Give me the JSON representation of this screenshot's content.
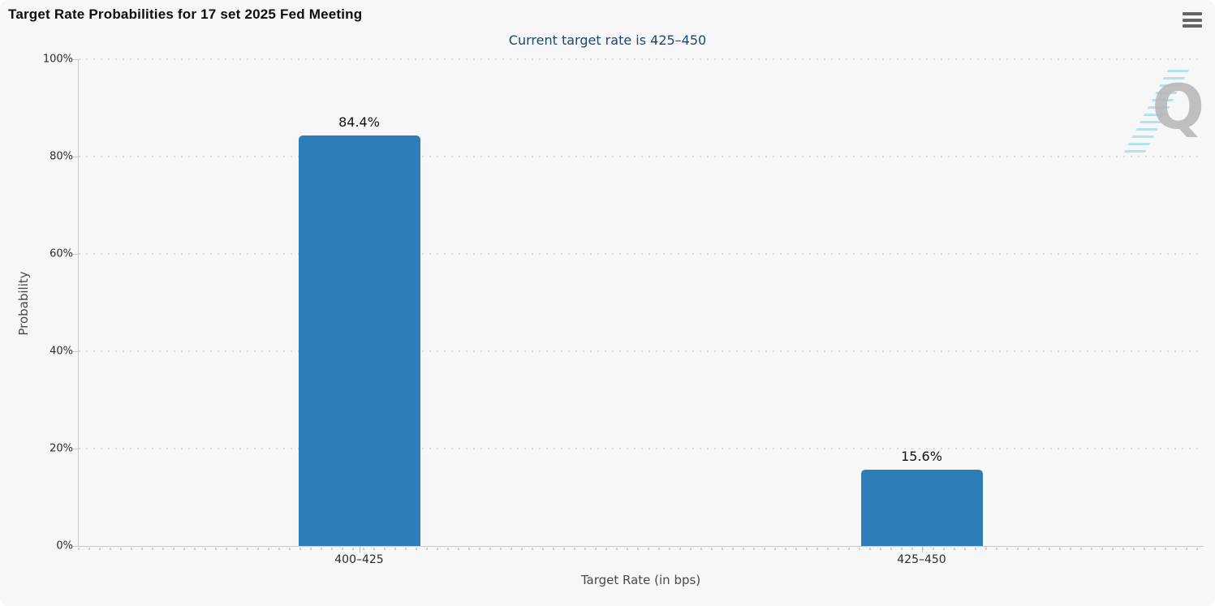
{
  "header": {
    "title": "Target Rate Probabilities for 17 set 2025 Fed Meeting"
  },
  "menu": {
    "icon": "hamburger-menu-icon"
  },
  "chart_data": {
    "type": "bar",
    "title": "Target Rate Probabilities for 17 set 2025 Fed Meeting",
    "subtitle": "Current target rate is 425–450",
    "categories": [
      "400–425",
      "425–450"
    ],
    "values": [
      84.4,
      15.6
    ],
    "value_labels": [
      "84.4%",
      "15.6%"
    ],
    "xlabel": "Target Rate (in bps)",
    "ylabel": "Probability",
    "ylim": [
      0,
      100
    ],
    "yticks": [
      0,
      20,
      40,
      60,
      80,
      100
    ],
    "ytick_labels": [
      "0%",
      "20%",
      "40%",
      "60%",
      "80%",
      "100%"
    ],
    "grid": "horizontal-dotted",
    "legend": "none",
    "bar_color": "#2d7eb8"
  },
  "watermark": {
    "letter": "Q"
  },
  "colors": {
    "background": "#f7f7f7",
    "bar": "#2d7eb8",
    "subtitle_text": "#22456b",
    "grid": "#d9d9d9",
    "axis_line": "#c9c9c9",
    "menu_icon": "#666666",
    "watermark_grey": "#b5b5b5",
    "watermark_blue": "#a5dff0"
  }
}
